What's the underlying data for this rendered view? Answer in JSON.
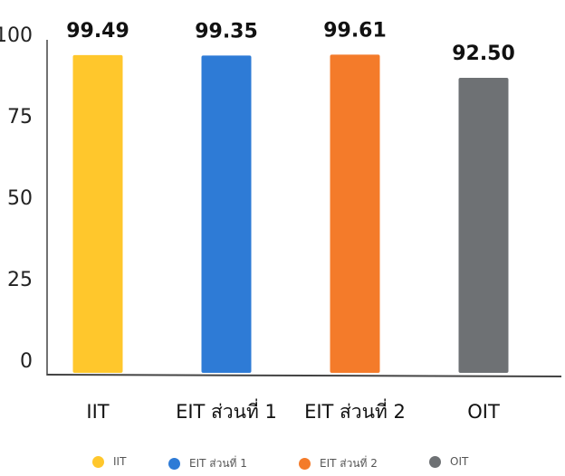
{
  "chart_data": {
    "type": "bar",
    "categories": [
      "IIT",
      "EIT ส่วนที่ 1",
      "EIT ส่วนที่ 2",
      "OIT"
    ],
    "values": [
      99.49,
      99.35,
      99.61,
      92.5
    ],
    "value_labels": [
      "99.49",
      "99.35",
      "99.61",
      "92.50"
    ],
    "colors": [
      "#FFC72C",
      "#2E7BD6",
      "#F47B2A",
      "#6E7174"
    ],
    "ylim": [
      0,
      100
    ],
    "yticks": [
      "0",
      "25",
      "50",
      "75",
      "100"
    ],
    "grid": false,
    "legend_position": "bottom",
    "legend": [
      "IIT",
      "EIT ส่วนที่ 1",
      "EIT ส่วนที่ 2",
      "OIT"
    ]
  }
}
